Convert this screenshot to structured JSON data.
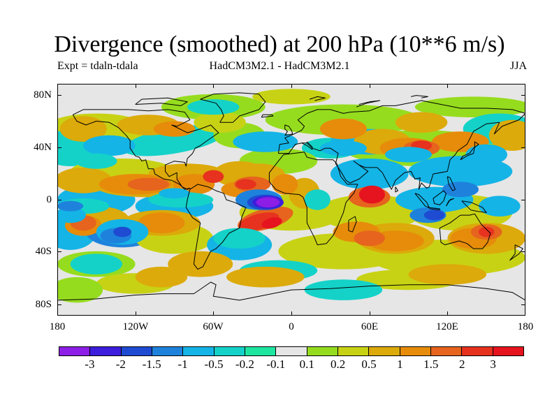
{
  "header": {
    "title": "Divergence (smoothed) at 200 hPa (10**6 m/s)",
    "expt": "Expt = tdaln-tdala",
    "models": "HadCM3M2.1 - HadCM3M2.1",
    "season": "JJA"
  },
  "map": {
    "lat_labels": [
      "80N",
      "40N",
      "0",
      "40S",
      "80S"
    ],
    "lon_labels": [
      "180",
      "120W",
      "60W",
      "0",
      "60E",
      "120E",
      "180"
    ],
    "background_color": "#e6e6e6",
    "coastline_color": "#000000"
  },
  "colorbar": {
    "colors": [
      "#8c1ee6",
      "#3c1edc",
      "#1e4bd2",
      "#1e82dc",
      "#14b4e6",
      "#14d2c8",
      "#1ee6a0",
      "#e6e6e6",
      "#96dc1e",
      "#c8d214",
      "#dcaa0a",
      "#e68c0a",
      "#e6641e",
      "#e6321e",
      "#e6141e"
    ],
    "labels": [
      "-3",
      "-2",
      "-1.5",
      "-1",
      "-0.5",
      "-0.2",
      "-0.1",
      "0.1",
      "0.2",
      "0.5",
      "1",
      "1.5",
      "2",
      "3"
    ]
  }
}
